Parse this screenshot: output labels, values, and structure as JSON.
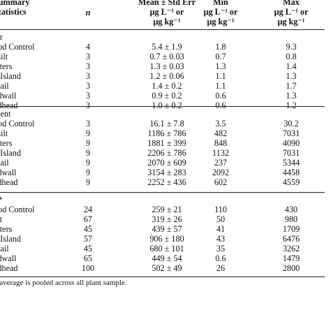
{
  "header": {
    "summary_line1": "Summary",
    "summary_line2": "Statistics",
    "n": "n",
    "mean_line1": "Mean ± Std Err",
    "mean_line2": "μg L⁻¹ or",
    "mean_line3": "μg kg⁻¹",
    "min_line1": "Min",
    "min_line2": "μg L⁻¹ or",
    "min_line3": "μg kg⁻¹",
    "max_line1": "Max",
    "max_line2": "μg L⁻¹ or",
    "max_line3": "μg kg⁻¹"
  },
  "sections": [
    {
      "title": "ter",
      "rows": [
        {
          "label": "ood Control",
          "n": "4",
          "mean": "5.4 ± 1.9",
          "min": "1.8",
          "max": "9.3"
        },
        {
          "label": "esilt",
          "n": "3",
          "mean": "0.7 ± 0.03",
          "min": "0.7",
          "max": "0.8"
        },
        {
          "label": "elters",
          "n": "3",
          "mean": "1.3 ± 0.03",
          "min": "1.3",
          "max": "1.4"
        },
        {
          "label": "g Island",
          "n": "3",
          "mean": "1.2 ± 0.06",
          "min": "1.1",
          "max": "1.3"
        },
        {
          "label": "ntail",
          "n": "3",
          "mean": "1.4 ± 0.2",
          "min": "1.1",
          "max": "1.7"
        },
        {
          "label": "adwall",
          "n": "3",
          "mean": "0.9 ± 0.2",
          "min": "0.6",
          "max": "1.3"
        },
        {
          "label": "edhead",
          "n": "3",
          "mean": "1.0 ± 0.2",
          "min": "0.6",
          "max": "1.2"
        }
      ]
    },
    {
      "title": "ment",
      "rows": [
        {
          "label": "ood Control",
          "n": "3",
          "mean": "16.1 ± 7.8",
          "min": "3.5",
          "max": "30.2"
        },
        {
          "label": "esilt",
          "n": "9",
          "mean": "1186 ± 786",
          "min": "482",
          "max": "7031"
        },
        {
          "label": "elters",
          "n": "9",
          "mean": "1881 ± 399",
          "min": "848",
          "max": "4090"
        },
        {
          "label": "g Island",
          "n": "9",
          "mean": "2206 ± 786",
          "min": "1132",
          "max": "7031"
        },
        {
          "label": "ntail",
          "n": "9",
          "mean": "2070 ± 609",
          "min": "237",
          "max": "5344"
        },
        {
          "label": "adwall",
          "n": "9",
          "mean": "3154 ± 283",
          "min": "2092",
          "max": "4458"
        },
        {
          "label": "edhead",
          "n": "9",
          "mean": "2252 ± 436",
          "min": "602",
          "max": "4559"
        }
      ]
    },
    {
      "title": "t *",
      "rows": [
        {
          "label": "ood Control",
          "n": "24",
          "mean": "259 ± 21",
          "min": "110",
          "max": "430"
        },
        {
          "label": "elt",
          "n": "67",
          "mean": "319 ± 26",
          "min": "50",
          "max": "980"
        },
        {
          "label": "elters",
          "n": "45",
          "mean": "439 ± 57",
          "min": "41",
          "max": "1709"
        },
        {
          "label": "g Island",
          "n": "57",
          "mean": "906 ± 180",
          "min": "43",
          "max": "6476"
        },
        {
          "label": "ntail",
          "n": "45",
          "mean": "680 ± 101",
          "min": "35",
          "max": "3262"
        },
        {
          "label": "adwall",
          "n": "65",
          "mean": "449 ± 54",
          "min": "0.6",
          "max": "1479"
        },
        {
          "label": "edhead",
          "n": "100",
          "mean": "502 ± 49",
          "min": "26",
          "max": "2800"
        }
      ]
    }
  ],
  "footnote": "* average is pooled across all plant sample."
}
